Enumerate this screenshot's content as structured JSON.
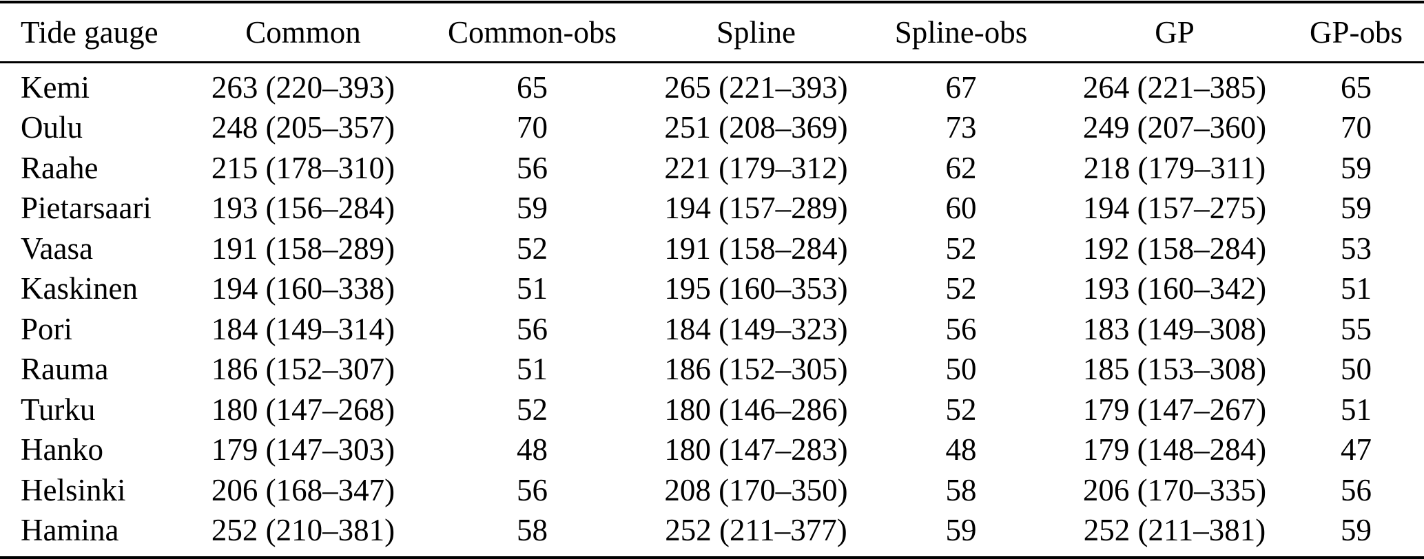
{
  "colors": {
    "background": "#ffffff",
    "text": "#000000",
    "rule": "#000000"
  },
  "table": {
    "columns": [
      "Tide gauge",
      "Common",
      "Common-obs",
      "Spline",
      "Spline-obs",
      "GP",
      "GP-obs"
    ],
    "rows": [
      [
        "Kemi",
        "263 (220–393)",
        "65",
        "265 (221–393)",
        "67",
        "264 (221–385)",
        "65"
      ],
      [
        "Oulu",
        "248 (205–357)",
        "70",
        "251 (208–369)",
        "73",
        "249 (207–360)",
        "70"
      ],
      [
        "Raahe",
        "215 (178–310)",
        "56",
        "221 (179–312)",
        "62",
        "218 (179–311)",
        "59"
      ],
      [
        "Pietarsaari",
        "193 (156–284)",
        "59",
        "194 (157–289)",
        "60",
        "194 (157–275)",
        "59"
      ],
      [
        "Vaasa",
        "191 (158–289)",
        "52",
        "191 (158–284)",
        "52",
        "192 (158–284)",
        "53"
      ],
      [
        "Kaskinen",
        "194 (160–338)",
        "51",
        "195 (160–353)",
        "52",
        "193 (160–342)",
        "51"
      ],
      [
        "Pori",
        "184 (149–314)",
        "56",
        "184 (149–323)",
        "56",
        "183 (149–308)",
        "55"
      ],
      [
        "Rauma",
        "186 (152–307)",
        "51",
        "186 (152–305)",
        "50",
        "185 (153–308)",
        "50"
      ],
      [
        "Turku",
        "180 (147–268)",
        "52",
        "180 (146–286)",
        "52",
        "179 (147–267)",
        "51"
      ],
      [
        "Hanko",
        "179 (147–303)",
        "48",
        "180 (147–283)",
        "48",
        "179 (148–284)",
        "47"
      ],
      [
        "Helsinki",
        "206 (168–347)",
        "56",
        "208 (170–350)",
        "58",
        "206 (170–335)",
        "56"
      ],
      [
        "Hamina",
        "252 (210–381)",
        "58",
        "252 (211–377)",
        "59",
        "252 (211–381)",
        "59"
      ]
    ]
  }
}
